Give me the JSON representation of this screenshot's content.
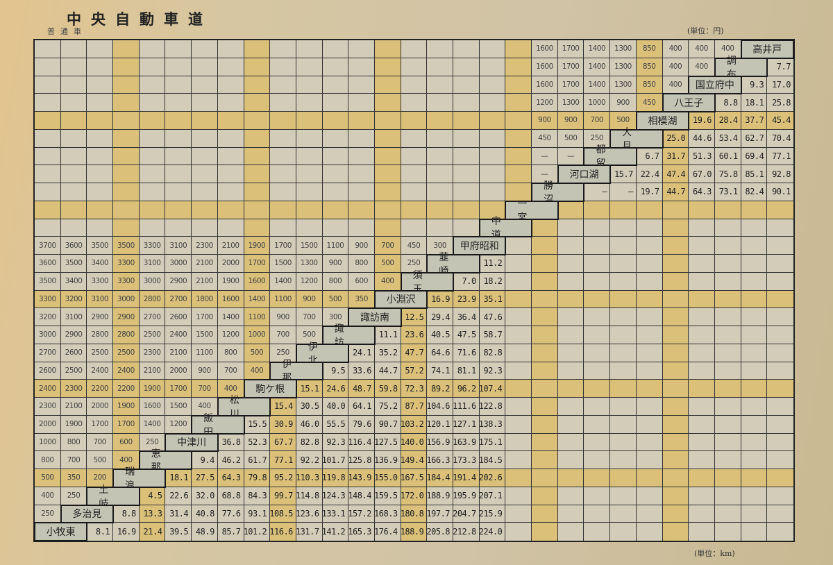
{
  "header": {
    "title": "中央自動車道",
    "subtitle": "普通車",
    "unit_toll": "(単位：円)",
    "unit_distance": "(単位：km)"
  },
  "colors": {
    "highlight": "#dbc07a",
    "cell": "#d3ccb9",
    "label": "#c3c4b4"
  },
  "table": {
    "rows": [
      {
        "station": "高井戸",
        "highlight": false,
        "tolls": [
          "1600",
          "1700",
          "1400",
          "1300",
          "850",
          "400",
          "400",
          "400"
        ],
        "distances": []
      },
      {
        "station": "調布",
        "highlight": false,
        "tolls": [
          "1600",
          "1700",
          "1400",
          "1300",
          "850",
          "400",
          "400"
        ],
        "distances": [
          "7.7"
        ]
      },
      {
        "station": "国立府中",
        "highlight": false,
        "tolls": [
          "1600",
          "1700",
          "1400",
          "1300",
          "850",
          "400"
        ],
        "distances": [
          "9.3",
          "17.0"
        ]
      },
      {
        "station": "八王子",
        "highlight": false,
        "tolls": [
          "1200",
          "1300",
          "1000",
          "900",
          "450"
        ],
        "distances": [
          "8.8",
          "18.1",
          "25.8"
        ]
      },
      {
        "station": "相模湖",
        "highlight": true,
        "tolls": [
          "900",
          "900",
          "700",
          "500"
        ],
        "distances": [
          "19.6",
          "28.4",
          "37.7",
          "45.4"
        ]
      },
      {
        "station": "大月",
        "highlight": false,
        "tolls": [
          "450",
          "500",
          "250"
        ],
        "distances": [
          "25.0",
          "44.6",
          "53.4",
          "62.7",
          "70.4"
        ]
      },
      {
        "station": "都留",
        "highlight": false,
        "tolls": [
          "—",
          "—"
        ],
        "distances": [
          "6.7",
          "31.7",
          "51.3",
          "60.1",
          "69.4",
          "77.1"
        ]
      },
      {
        "station": "河口湖",
        "highlight": false,
        "tolls": [
          "—"
        ],
        "distances": [
          "15.7",
          "22.4",
          "47.4",
          "67.0",
          "75.8",
          "85.1",
          "92.8"
        ]
      },
      {
        "station": "勝沼",
        "highlight": false,
        "tolls": [],
        "distances": [
          "—",
          "—",
          "19.7",
          "44.7",
          "64.3",
          "73.1",
          "82.4",
          "90.1"
        ]
      },
      {
        "station": "一宮",
        "highlight": true,
        "tolls": [],
        "distances": []
      },
      {
        "station": "中道",
        "highlight": false,
        "tolls": [],
        "distances": []
      },
      {
        "station": "甲府昭和",
        "highlight": false,
        "tolls": [
          "3700",
          "3600",
          "3500",
          "3500",
          "3300",
          "3100",
          "2300",
          "2100",
          "1900",
          "1700",
          "1500",
          "1100",
          "900",
          "700",
          "450",
          "300"
        ],
        "distances": []
      },
      {
        "station": "韮崎",
        "highlight": false,
        "tolls": [
          "3600",
          "3500",
          "3400",
          "3300",
          "3100",
          "3000",
          "2100",
          "2000",
          "1700",
          "1500",
          "1300",
          "900",
          "800",
          "500",
          "250"
        ],
        "distances": [
          "11.2"
        ]
      },
      {
        "station": "須玉",
        "highlight": false,
        "tolls": [
          "3500",
          "3400",
          "3300",
          "3300",
          "3000",
          "2900",
          "2100",
          "1900",
          "1600",
          "1400",
          "1200",
          "800",
          "600",
          "400"
        ],
        "distances": [
          "7.0",
          "18.2"
        ]
      },
      {
        "station": "小淵沢",
        "highlight": true,
        "tolls": [
          "3300",
          "3200",
          "3100",
          "3000",
          "2800",
          "2700",
          "1800",
          "1600",
          "1400",
          "1100",
          "900",
          "500",
          "350"
        ],
        "distances": [
          "16.9",
          "23.9",
          "35.1"
        ]
      },
      {
        "station": "諏訪南",
        "highlight": false,
        "tolls": [
          "3200",
          "3100",
          "2900",
          "2900",
          "2700",
          "2600",
          "1700",
          "1400",
          "1100",
          "900",
          "700",
          "300"
        ],
        "distances": [
          "12.5",
          "29.4",
          "36.4",
          "47.6"
        ]
      },
      {
        "station": "諏訪",
        "highlight": false,
        "tolls": [
          "3000",
          "2900",
          "2800",
          "2800",
          "2500",
          "2400",
          "1500",
          "1200",
          "1000",
          "700",
          "500"
        ],
        "distances": [
          "11.1",
          "23.6",
          "40.5",
          "47.5",
          "58.7"
        ]
      },
      {
        "station": "伊北",
        "highlight": false,
        "tolls": [
          "2700",
          "2600",
          "2500",
          "2500",
          "2300",
          "2100",
          "1100",
          "800",
          "500",
          "250"
        ],
        "distances": [
          "24.1",
          "35.2",
          "47.7",
          "64.6",
          "71.6",
          "82.8"
        ]
      },
      {
        "station": "伊那",
        "highlight": false,
        "tolls": [
          "2600",
          "2500",
          "2400",
          "2400",
          "2100",
          "2000",
          "900",
          "700",
          "400"
        ],
        "distances": [
          "9.5",
          "33.6",
          "44.7",
          "57.2",
          "74.1",
          "81.1",
          "92.3"
        ]
      },
      {
        "station": "駒ケ根",
        "highlight": true,
        "tolls": [
          "2400",
          "2300",
          "2200",
          "2200",
          "1900",
          "1700",
          "700",
          "400"
        ],
        "distances": [
          "15.1",
          "24.6",
          "48.7",
          "59.8",
          "72.3",
          "89.2",
          "96.2",
          "107.4"
        ]
      },
      {
        "station": "松川",
        "highlight": false,
        "tolls": [
          "2300",
          "2100",
          "2000",
          "1900",
          "1600",
          "1500",
          "400"
        ],
        "distances": [
          "15.4",
          "30.5",
          "40.0",
          "64.1",
          "75.2",
          "87.7",
          "104.6",
          "111.6",
          "122.8"
        ]
      },
      {
        "station": "飯田",
        "highlight": false,
        "tolls": [
          "2000",
          "1900",
          "1700",
          "1700",
          "1400",
          "1200"
        ],
        "distances": [
          "15.5",
          "30.9",
          "46.0",
          "55.5",
          "79.6",
          "90.7",
          "103.2",
          "120.1",
          "127.1",
          "138.3"
        ]
      },
      {
        "station": "中津川",
        "highlight": false,
        "tolls": [
          "1000",
          "800",
          "700",
          "600",
          "250"
        ],
        "distances": [
          "36.8",
          "52.3",
          "67.7",
          "82.8",
          "92.3",
          "116.4",
          "127.5",
          "140.0",
          "156.9",
          "163.9",
          "175.1"
        ]
      },
      {
        "station": "恵那",
        "highlight": false,
        "tolls": [
          "800",
          "700",
          "500",
          "400"
        ],
        "distances": [
          "9.4",
          "46.2",
          "61.7",
          "77.1",
          "92.2",
          "101.7",
          "125.8",
          "136.9",
          "149.4",
          "166.3",
          "173.3",
          "184.5"
        ]
      },
      {
        "station": "瑞浪",
        "highlight": true,
        "tolls": [
          "500",
          "350",
          "200"
        ],
        "distances": [
          "18.1",
          "27.5",
          "64.3",
          "79.8",
          "95.2",
          "110.3",
          "119.8",
          "143.9",
          "155.0",
          "167.5",
          "184.4",
          "191.4",
          "202.6"
        ]
      },
      {
        "station": "土岐",
        "highlight": false,
        "tolls": [
          "400",
          "250"
        ],
        "distances": [
          "4.5",
          "22.6",
          "32.0",
          "68.8",
          "84.3",
          "99.7",
          "114.8",
          "124.3",
          "148.4",
          "159.5",
          "172.0",
          "188.9",
          "195.9",
          "207.1"
        ]
      },
      {
        "station": "多治見",
        "highlight": false,
        "tolls": [
          "250"
        ],
        "distances": [
          "8.8",
          "13.3",
          "31.4",
          "40.8",
          "77.6",
          "93.1",
          "108.5",
          "123.6",
          "133.1",
          "157.2",
          "168.3",
          "180.8",
          "197.7",
          "204.7",
          "215.9"
        ]
      },
      {
        "station": "小牧東",
        "highlight": false,
        "tolls": [],
        "distances": [
          "8.1",
          "16.9",
          "21.4",
          "39.5",
          "48.9",
          "85.7",
          "101.2",
          "116.6",
          "131.7",
          "141.2",
          "165.3",
          "176.4",
          "188.9",
          "205.8",
          "212.8",
          "224.0"
        ]
      }
    ]
  }
}
